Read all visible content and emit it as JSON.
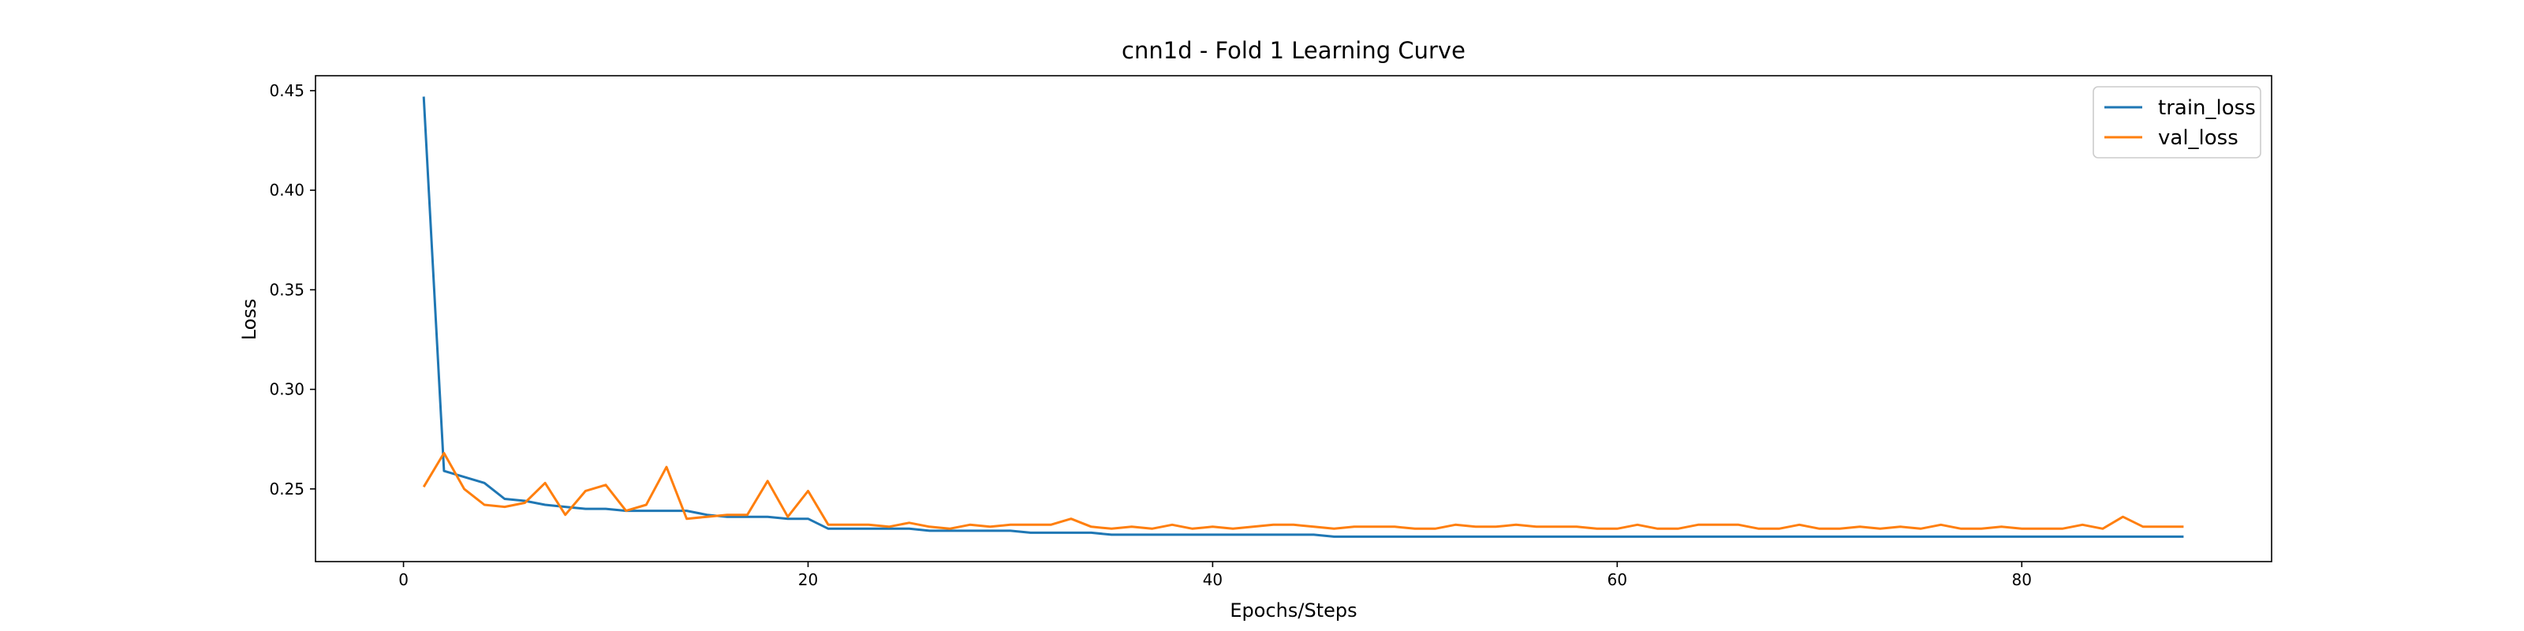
{
  "chart_data": {
    "type": "line",
    "title": "cnn1d - Fold 1 Learning Curve",
    "xlabel": "Epochs/Steps",
    "ylabel": "Loss",
    "xlim": [
      -4.35,
      92.35
    ],
    "ylim": [
      0.2135,
      0.4575
    ],
    "xticks": [
      0,
      20,
      40,
      60,
      80
    ],
    "yticks": [
      0.25,
      0.3,
      0.35,
      0.4,
      0.45
    ],
    "ytick_labels": [
      "0.25",
      "0.30",
      "0.35",
      "0.40",
      "0.45"
    ],
    "grid": false,
    "legend_position": "top-right",
    "x": [
      1,
      2,
      3,
      4,
      5,
      6,
      7,
      8,
      9,
      10,
      11,
      12,
      13,
      14,
      15,
      16,
      17,
      18,
      19,
      20,
      21,
      22,
      23,
      24,
      25,
      26,
      27,
      28,
      29,
      30,
      31,
      32,
      33,
      34,
      35,
      36,
      37,
      38,
      39,
      40,
      41,
      42,
      43,
      44,
      45,
      46,
      47,
      48,
      49,
      50,
      51,
      52,
      53,
      54,
      55,
      56,
      57,
      58,
      59,
      60,
      61,
      62,
      63,
      64,
      65,
      66,
      67,
      68,
      69,
      70,
      71,
      72,
      73,
      74,
      75,
      76,
      77,
      78,
      79,
      80,
      81,
      82,
      83,
      84,
      85,
      86,
      87,
      88
    ],
    "series": [
      {
        "name": "train_loss",
        "color": "#1f77b4",
        "values": [
          0.447,
          0.259,
          0.256,
          0.253,
          0.245,
          0.244,
          0.242,
          0.241,
          0.24,
          0.24,
          0.239,
          0.239,
          0.239,
          0.239,
          0.237,
          0.236,
          0.236,
          0.236,
          0.235,
          0.235,
          0.23,
          0.23,
          0.23,
          0.23,
          0.23,
          0.229,
          0.229,
          0.229,
          0.229,
          0.229,
          0.228,
          0.228,
          0.228,
          0.228,
          0.227,
          0.227,
          0.227,
          0.227,
          0.227,
          0.227,
          0.227,
          0.227,
          0.227,
          0.227,
          0.227,
          0.226,
          0.226,
          0.226,
          0.226,
          0.226,
          0.226,
          0.226,
          0.226,
          0.226,
          0.226,
          0.226,
          0.226,
          0.226,
          0.226,
          0.226,
          0.226,
          0.226,
          0.226,
          0.226,
          0.226,
          0.226,
          0.226,
          0.226,
          0.226,
          0.226,
          0.226,
          0.226,
          0.226,
          0.226,
          0.226,
          0.226,
          0.226,
          0.226,
          0.226,
          0.226,
          0.226,
          0.226,
          0.226,
          0.226,
          0.226,
          0.226,
          0.226,
          0.226
        ]
      },
      {
        "name": "val_loss",
        "color": "#ff7f0e",
        "values": [
          0.251,
          0.268,
          0.25,
          0.242,
          0.241,
          0.243,
          0.253,
          0.237,
          0.249,
          0.252,
          0.239,
          0.242,
          0.261,
          0.235,
          0.236,
          0.237,
          0.237,
          0.254,
          0.236,
          0.249,
          0.232,
          0.232,
          0.232,
          0.231,
          0.233,
          0.231,
          0.23,
          0.232,
          0.231,
          0.232,
          0.232,
          0.232,
          0.235,
          0.231,
          0.23,
          0.231,
          0.23,
          0.232,
          0.23,
          0.231,
          0.23,
          0.231,
          0.232,
          0.232,
          0.231,
          0.23,
          0.231,
          0.231,
          0.231,
          0.23,
          0.23,
          0.232,
          0.231,
          0.231,
          0.232,
          0.231,
          0.231,
          0.231,
          0.23,
          0.23,
          0.232,
          0.23,
          0.23,
          0.232,
          0.232,
          0.232,
          0.23,
          0.23,
          0.232,
          0.23,
          0.23,
          0.231,
          0.23,
          0.231,
          0.23,
          0.232,
          0.23,
          0.23,
          0.231,
          0.23,
          0.23,
          0.23,
          0.232,
          0.23,
          0.236,
          0.231,
          0.231,
          0.231
        ]
      }
    ]
  }
}
